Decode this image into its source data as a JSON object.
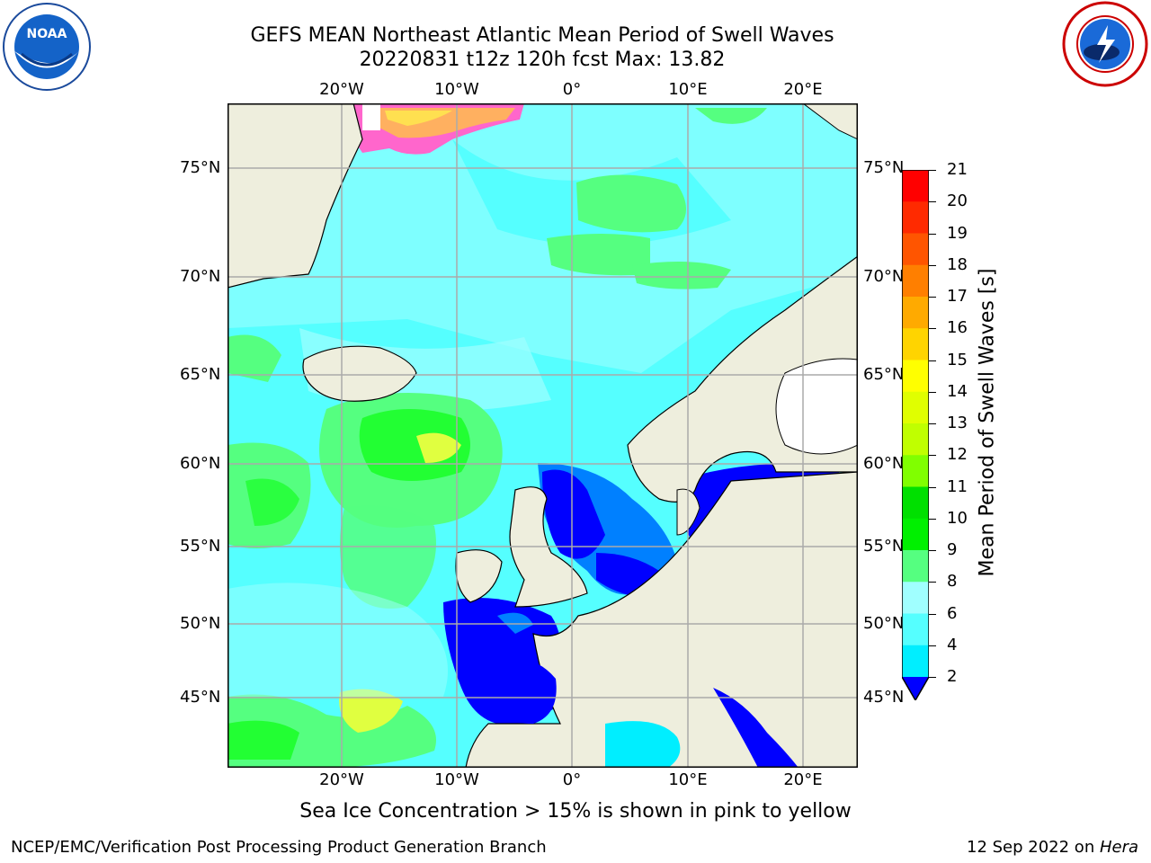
{
  "title_line1": "GEFS MEAN Northeast Atlantic Mean Period of Swell Waves",
  "title_line2": "20220831 t12z 120h fcst   Max: 13.82",
  "lon_labels": [
    "20°W",
    "10°W",
    "0°",
    "10°E",
    "20°E"
  ],
  "lat_labels": [
    "75°N",
    "70°N",
    "65°N",
    "60°N",
    "55°N",
    "50°N",
    "45°N"
  ],
  "colorbar": {
    "label": "Mean Period of Swell Waves [s]",
    "ticks": [
      "21",
      "20",
      "19",
      "18",
      "17",
      "16",
      "15",
      "14",
      "13",
      "12",
      "11",
      "10",
      "9",
      "8",
      "6",
      "4",
      "2"
    ],
    "colors": [
      "#ff0000",
      "#ff2a00",
      "#ff5500",
      "#ff7f00",
      "#ffaa00",
      "#ffd400",
      "#ffff00",
      "#e0ff00",
      "#c0ff00",
      "#80ff00",
      "#00e000",
      "#00f000",
      "#55ff80",
      "#a0ffff",
      "#55ffff",
      "#00eeff",
      "#0080ff",
      "#0000ff"
    ]
  },
  "note": "Sea Ice Concentration > 15% is shown in pink to yellow",
  "footer_left": "NCEP/EMC/Verification Post Processing Product Generation Branch",
  "footer_date": "12 Sep 2022 on ",
  "footer_machine": "Hera",
  "logo_left_text": "NOAA",
  "colors": {
    "ocean_base": "#55ffff",
    "land": "#eeeedd",
    "grid": "#aaaaaa",
    "low": "#0000ff",
    "mid_low": "#0080ff",
    "light": "#a0ffff",
    "green": "#55ff80",
    "green_dark": "#00ff00",
    "yellow": "#e0ff40"
  }
}
